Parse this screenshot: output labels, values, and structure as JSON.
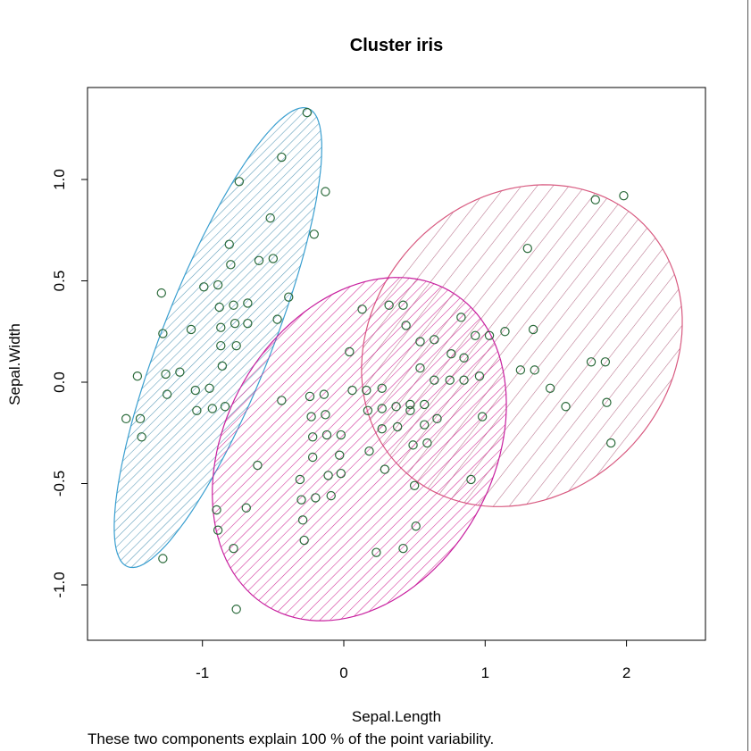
{
  "chart_data": {
    "type": "scatter",
    "title": "Cluster iris",
    "xlabel": "Sepal.Length",
    "ylabel": "Sepal.Width",
    "footnote": "These two components explain 100 % of the point variability.",
    "xlim": [
      -1.81,
      2.56
    ],
    "ylim": [
      -1.27,
      1.45
    ],
    "xticks": [
      -1,
      0,
      1,
      2
    ],
    "xtick_labels": [
      "-1",
      "0",
      "1",
      "2"
    ],
    "yticks": [
      -1.0,
      -0.5,
      0.0,
      0.5,
      1.0
    ],
    "ytick_labels": [
      "-1.0",
      "-0.5",
      "0.0",
      "0.5",
      "1.0"
    ],
    "point_color": "#2a6a3a",
    "clusters": [
      {
        "name": "cluster-1",
        "border_color": "#3a9fd0",
        "hatch_color": "#5a9ab8",
        "ellipse": {
          "center": [
            -0.89,
            0.22
          ],
          "axis_a": [
            0.64,
            1.13
          ],
          "axis_b": [
            0.36,
            -0.1
          ]
        },
        "points": [
          [
            -0.26,
            1.33
          ],
          [
            -0.44,
            1.11
          ],
          [
            -0.74,
            0.99
          ],
          [
            -0.13,
            0.94
          ],
          [
            -0.52,
            0.81
          ],
          [
            -0.21,
            0.73
          ],
          [
            -0.81,
            0.68
          ],
          [
            -0.8,
            0.58
          ],
          [
            -0.6,
            0.6
          ],
          [
            -0.5,
            0.61
          ],
          [
            -1.29,
            0.44
          ],
          [
            -0.99,
            0.47
          ],
          [
            -0.89,
            0.48
          ],
          [
            -0.39,
            0.42
          ],
          [
            -0.78,
            0.38
          ],
          [
            -0.88,
            0.37
          ],
          [
            -0.68,
            0.39
          ],
          [
            -0.47,
            0.31
          ],
          [
            -0.68,
            0.29
          ],
          [
            -0.77,
            0.29
          ],
          [
            -0.87,
            0.27
          ],
          [
            -1.28,
            0.24
          ],
          [
            -1.08,
            0.26
          ],
          [
            -0.76,
            0.18
          ],
          [
            -0.87,
            0.18
          ],
          [
            -0.86,
            0.08
          ],
          [
            -1.16,
            0.05
          ],
          [
            -1.26,
            0.04
          ],
          [
            -1.46,
            0.03
          ],
          [
            -1.05,
            -0.04
          ],
          [
            -0.95,
            -0.03
          ],
          [
            -1.25,
            -0.06
          ],
          [
            -0.84,
            -0.12
          ],
          [
            -0.93,
            -0.13
          ],
          [
            -1.04,
            -0.14
          ],
          [
            -1.54,
            -0.18
          ],
          [
            -1.44,
            -0.18
          ],
          [
            -1.43,
            -0.27
          ],
          [
            -1.28,
            -0.87
          ]
        ]
      },
      {
        "name": "cluster-3",
        "border_color": "#d85a80",
        "hatch_color": "#b8708a",
        "ellipse": {
          "center": [
            1.26,
            0.18
          ],
          "axis_a": [
            0.86,
            0.6
          ],
          "axis_b": [
            0.74,
            -0.52
          ]
        },
        "points": [
          [
            1.78,
            0.9
          ],
          [
            1.98,
            0.92
          ],
          [
            1.3,
            0.66
          ],
          [
            1.34,
            0.26
          ],
          [
            1.14,
            0.25
          ],
          [
            1.03,
            0.23
          ],
          [
            0.93,
            0.23
          ],
          [
            0.83,
            0.32
          ],
          [
            0.64,
            0.21
          ],
          [
            0.54,
            0.2
          ],
          [
            0.44,
            0.28
          ],
          [
            0.64,
            0.01
          ],
          [
            0.76,
            0.14
          ],
          [
            0.85,
            0.12
          ],
          [
            0.96,
            0.03
          ],
          [
            1.25,
            0.06
          ],
          [
            1.35,
            0.06
          ],
          [
            1.46,
            -0.03
          ],
          [
            1.75,
            0.1
          ],
          [
            1.85,
            0.1
          ],
          [
            1.57,
            -0.12
          ],
          [
            1.86,
            -0.1
          ],
          [
            0.98,
            -0.17
          ],
          [
            1.89,
            -0.3
          ],
          [
            0.9,
            -0.48
          ],
          [
            0.5,
            -0.51
          ]
        ]
      },
      {
        "name": "cluster-2",
        "border_color": "#c8209f",
        "hatch_color": "#d02a96",
        "ellipse": {
          "center": [
            0.11,
            -0.33
          ],
          "axis_a": [
            0.64,
            0.78
          ],
          "axis_b": [
            0.82,
            -0.33
          ]
        },
        "points": [
          [
            0.13,
            0.36
          ],
          [
            0.32,
            0.38
          ],
          [
            0.42,
            0.38
          ],
          [
            0.04,
            0.15
          ],
          [
            -0.44,
            -0.09
          ],
          [
            -0.24,
            -0.07
          ],
          [
            -0.14,
            -0.06
          ],
          [
            0.06,
            -0.04
          ],
          [
            0.16,
            -0.04
          ],
          [
            0.27,
            -0.03
          ],
          [
            -0.23,
            -0.17
          ],
          [
            -0.13,
            -0.16
          ],
          [
            -0.22,
            -0.27
          ],
          [
            -0.12,
            -0.26
          ],
          [
            -0.02,
            -0.26
          ],
          [
            -0.03,
            -0.36
          ],
          [
            -0.22,
            -0.37
          ],
          [
            -0.11,
            -0.46
          ],
          [
            -0.02,
            -0.45
          ],
          [
            -0.31,
            -0.48
          ],
          [
            -0.09,
            -0.56
          ],
          [
            -0.2,
            -0.57
          ],
          [
            -0.3,
            -0.58
          ],
          [
            -0.61,
            -0.41
          ],
          [
            -0.69,
            -0.62
          ],
          [
            -0.9,
            -0.63
          ],
          [
            -0.89,
            -0.73
          ],
          [
            -0.29,
            -0.68
          ],
          [
            -0.28,
            -0.78
          ],
          [
            -0.78,
            -0.82
          ],
          [
            -0.76,
            -1.12
          ],
          [
            0.23,
            -0.84
          ],
          [
            0.42,
            -0.82
          ],
          [
            0.51,
            -0.71
          ],
          [
            0.18,
            -0.34
          ],
          [
            0.29,
            -0.43
          ],
          [
            0.17,
            -0.14
          ],
          [
            0.27,
            -0.13
          ],
          [
            0.37,
            -0.12
          ],
          [
            0.47,
            -0.11
          ],
          [
            0.54,
            0.07
          ],
          [
            0.47,
            -0.14
          ],
          [
            0.38,
            -0.22
          ],
          [
            0.27,
            -0.23
          ],
          [
            0.49,
            -0.31
          ],
          [
            0.59,
            -0.3
          ],
          [
            0.57,
            -0.21
          ],
          [
            0.66,
            -0.18
          ],
          [
            0.75,
            0.01
          ],
          [
            0.85,
            0.01
          ],
          [
            0.57,
            -0.11
          ]
        ]
      }
    ]
  }
}
